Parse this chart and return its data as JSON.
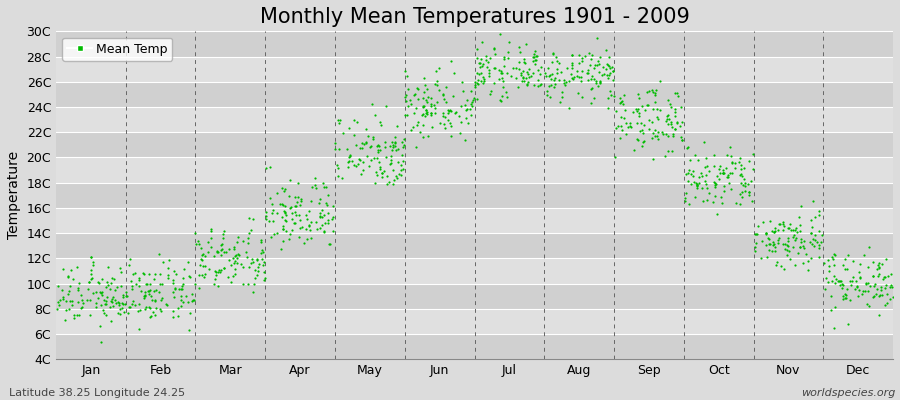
{
  "title": "Monthly Mean Temperatures 1901 - 2009",
  "ylabel": "Temperature",
  "subtitle": "Latitude 38.25 Longitude 24.25",
  "watermark": "worldspecies.org",
  "ylim": [
    4,
    30
  ],
  "ytick_labels": [
    "4C",
    "6C",
    "8C",
    "10C",
    "12C",
    "14C",
    "16C",
    "18C",
    "20C",
    "22C",
    "24C",
    "26C",
    "28C",
    "30C"
  ],
  "ytick_values": [
    4,
    6,
    8,
    10,
    12,
    14,
    16,
    18,
    20,
    22,
    24,
    26,
    28,
    30
  ],
  "month_names": [
    "Jan",
    "Feb",
    "Mar",
    "Apr",
    "May",
    "Jun",
    "Jul",
    "Aug",
    "Sep",
    "Oct",
    "Nov",
    "Dec"
  ],
  "dot_color": "#00BB00",
  "background_color": "#DCDCDC",
  "grid_bg_dark": "#D0D0D0",
  "grid_bg_light": "#E0E0E0",
  "grid_line_color": "#FFFFFF",
  "dashed_line_color": "#666666",
  "title_fontsize": 15,
  "axis_label_fontsize": 10,
  "tick_fontsize": 9,
  "legend_fontsize": 9,
  "dot_size": 2.5,
  "n_years": 109,
  "monthly_mean_temps": [
    9.0,
    9.2,
    11.8,
    15.5,
    20.5,
    24.2,
    26.8,
    26.5,
    23.0,
    18.2,
    13.5,
    10.2
  ],
  "monthly_std_temps": [
    1.2,
    1.2,
    1.3,
    1.4,
    1.5,
    1.4,
    0.9,
    1.0,
    1.3,
    1.3,
    1.2,
    1.2
  ],
  "xlim": [
    0,
    12
  ],
  "month_tick_positions": [
    0.5,
    1.5,
    2.5,
    3.5,
    4.5,
    5.5,
    6.5,
    7.5,
    8.5,
    9.5,
    10.5,
    11.5
  ],
  "dashed_positions": [
    1,
    2,
    3,
    4,
    5,
    6,
    7,
    8,
    9,
    10,
    11
  ]
}
